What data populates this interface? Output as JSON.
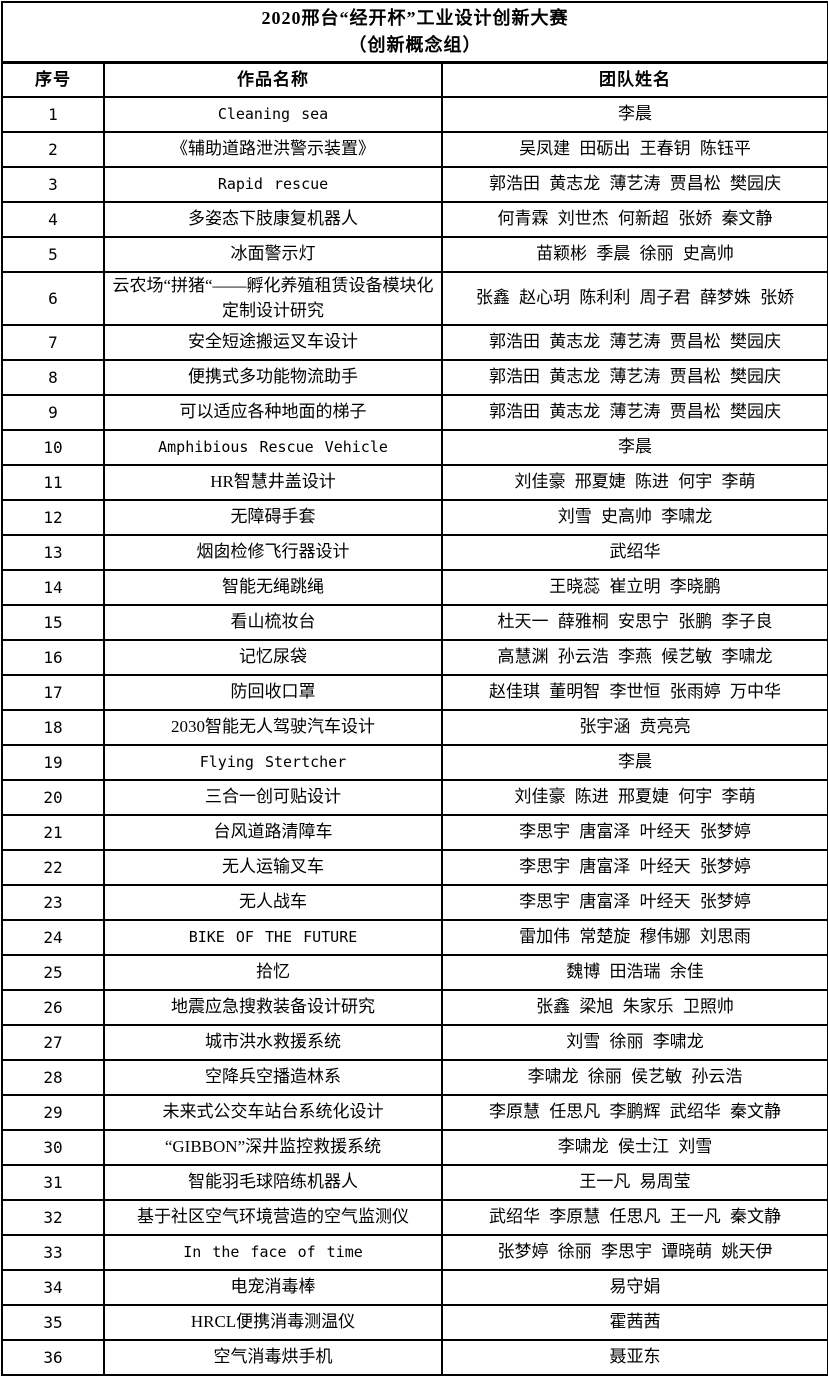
{
  "title": {
    "line1": "2020邢台“经开杯”工业设计创新大赛",
    "line2": "（创新概念组）"
  },
  "columns": {
    "no": "序号",
    "work": "作品名称",
    "team": "团队姓名"
  },
  "rows": [
    {
      "no": "1",
      "work": "Cleaning sea",
      "team": "李晨"
    },
    {
      "no": "2",
      "work": "《辅助道路泄洪警示装置》",
      "team": "吴凤建 田砺出 王春钥 陈钰平"
    },
    {
      "no": "3",
      "work": "Rapid rescue",
      "team": "郭浩田 黄志龙 薄艺涛 贾昌松 樊园庆"
    },
    {
      "no": "4",
      "work": "多姿态下肢康复机器人",
      "team": "何青霖 刘世杰 何新超 张娇 秦文静"
    },
    {
      "no": "5",
      "work": "冰面警示灯",
      "team": "苗颖彬 季晨 徐丽 史高帅"
    },
    {
      "no": "6",
      "work": "云农场“拼猪“——孵化养殖租赁设备模块化定制设计研究",
      "team": "张鑫 赵心玥 陈利利 周子君 薛梦姝 张娇"
    },
    {
      "no": "7",
      "work": "安全短途搬运叉车设计",
      "team": "郭浩田 黄志龙 薄艺涛 贾昌松 樊园庆"
    },
    {
      "no": "8",
      "work": "便携式多功能物流助手",
      "team": "郭浩田 黄志龙 薄艺涛 贾昌松 樊园庆"
    },
    {
      "no": "9",
      "work": "可以适应各种地面的梯子",
      "team": "郭浩田 黄志龙 薄艺涛 贾昌松 樊园庆"
    },
    {
      "no": "10",
      "work": "Amphibious Rescue Vehicle",
      "team": "李晨"
    },
    {
      "no": "11",
      "work": "HR智慧井盖设计",
      "team": "刘佳豪 邢夏婕 陈进 何宇 李萌"
    },
    {
      "no": "12",
      "work": "无障碍手套",
      "team": "刘雪 史高帅 李啸龙"
    },
    {
      "no": "13",
      "work": "烟囱检修飞行器设计",
      "team": "武绍华"
    },
    {
      "no": "14",
      "work": "智能无绳跳绳",
      "team": "王晓蕊 崔立明 李晓鹏"
    },
    {
      "no": "15",
      "work": "看山梳妆台",
      "team": "杜天一 薛雅桐 安思宁 张鹏 李子良"
    },
    {
      "no": "16",
      "work": "记忆尿袋",
      "team": "高慧渊 孙云浩 李燕 候艺敏 李啸龙"
    },
    {
      "no": "17",
      "work": "防回收口罩",
      "team": "赵佳琪 董明智 李世恒 张雨婷 万中华"
    },
    {
      "no": "18",
      "work": "2030智能无人驾驶汽车设计",
      "team": "张宇涵 贲亮亮"
    },
    {
      "no": "19",
      "work": "Flying Stertcher",
      "team": "李晨"
    },
    {
      "no": "20",
      "work": "三合一创可贴设计",
      "team": "刘佳豪 陈进 邢夏婕 何宇 李萌"
    },
    {
      "no": "21",
      "work": "台风道路清障车",
      "team": "李思宇 唐富泽 叶经天 张梦婷"
    },
    {
      "no": "22",
      "work": "无人运输叉车",
      "team": "李思宇 唐富泽 叶经天 张梦婷"
    },
    {
      "no": "23",
      "work": "无人战车",
      "team": "李思宇 唐富泽 叶经天 张梦婷"
    },
    {
      "no": "24",
      "work": "BIKE OF THE FUTURE",
      "team": "雷加伟 常楚旋 穆伟娜 刘思雨"
    },
    {
      "no": "25",
      "work": "拾忆",
      "team": "魏博 田浩瑞 余佳"
    },
    {
      "no": "26",
      "work": "地震应急搜救装备设计研究",
      "team": "张鑫 梁旭 朱家乐 卫照帅"
    },
    {
      "no": "27",
      "work": "城市洪水救援系统",
      "team": "刘雪 徐丽 李啸龙"
    },
    {
      "no": "28",
      "work": "空降兵空播造林系",
      "team": "李啸龙 徐丽 侯艺敏 孙云浩"
    },
    {
      "no": "29",
      "work": "未来式公交车站台系统化设计",
      "team": "李原慧 任思凡 李鹏辉 武绍华 秦文静"
    },
    {
      "no": "30",
      "work": "“GIBBON”深井监控救援系统",
      "team": "李啸龙 侯士江 刘雪"
    },
    {
      "no": "31",
      "work": "智能羽毛球陪练机器人",
      "team": "王一凡 易周莹"
    },
    {
      "no": "32",
      "work": "基于社区空气环境营造的空气监测仪",
      "team": "武绍华 李原慧 任思凡 王一凡 秦文静"
    },
    {
      "no": "33",
      "work": "In the face of time",
      "team": "张梦婷 徐丽 李思宇 谭晓萌 姚天伊"
    },
    {
      "no": "34",
      "work": "电宠消毒棒",
      "team": "易守娟"
    },
    {
      "no": "35",
      "work": "HRCL便携消毒测温仪",
      "team": "霍茜茜"
    },
    {
      "no": "36",
      "work": "空气消毒烘手机",
      "team": "聂亚东"
    }
  ]
}
